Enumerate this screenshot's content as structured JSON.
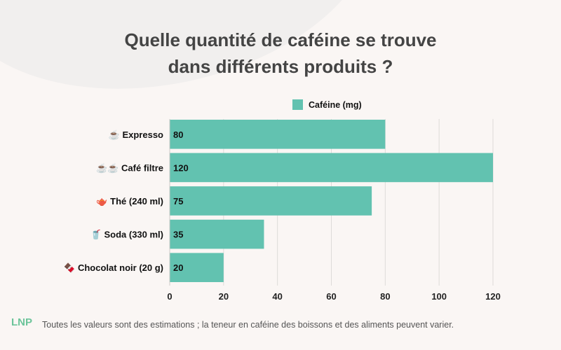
{
  "title_line1": "Quelle quantité de caféine se trouve",
  "title_line2": "dans différents produits ?",
  "footnote": "Toutes les valeurs sont des estimations ; la teneur en caféine des boissons et des aliments peuvent varier.",
  "logo_text": "LNP",
  "chart_data": {
    "type": "bar",
    "orientation": "horizontal",
    "title": "Quelle quantité de caféine se trouve dans différents produits ?",
    "categories": [
      "☕ Expresso",
      "☕☕ Café filtre",
      "🫖 Thé (240 ml)",
      "🥤 Soda (330 ml)",
      "🍫 Chocolat noir (20 g)"
    ],
    "series": [
      {
        "name": "Caféine (mg)",
        "values": [
          80,
          120,
          75,
          35,
          20
        ],
        "color": "#62c2b0"
      }
    ],
    "xlim": [
      0,
      120
    ],
    "xticks": [
      "0",
      "20",
      "40",
      "60",
      "80",
      "100",
      "120"
    ],
    "grid": true,
    "legend": "top"
  }
}
